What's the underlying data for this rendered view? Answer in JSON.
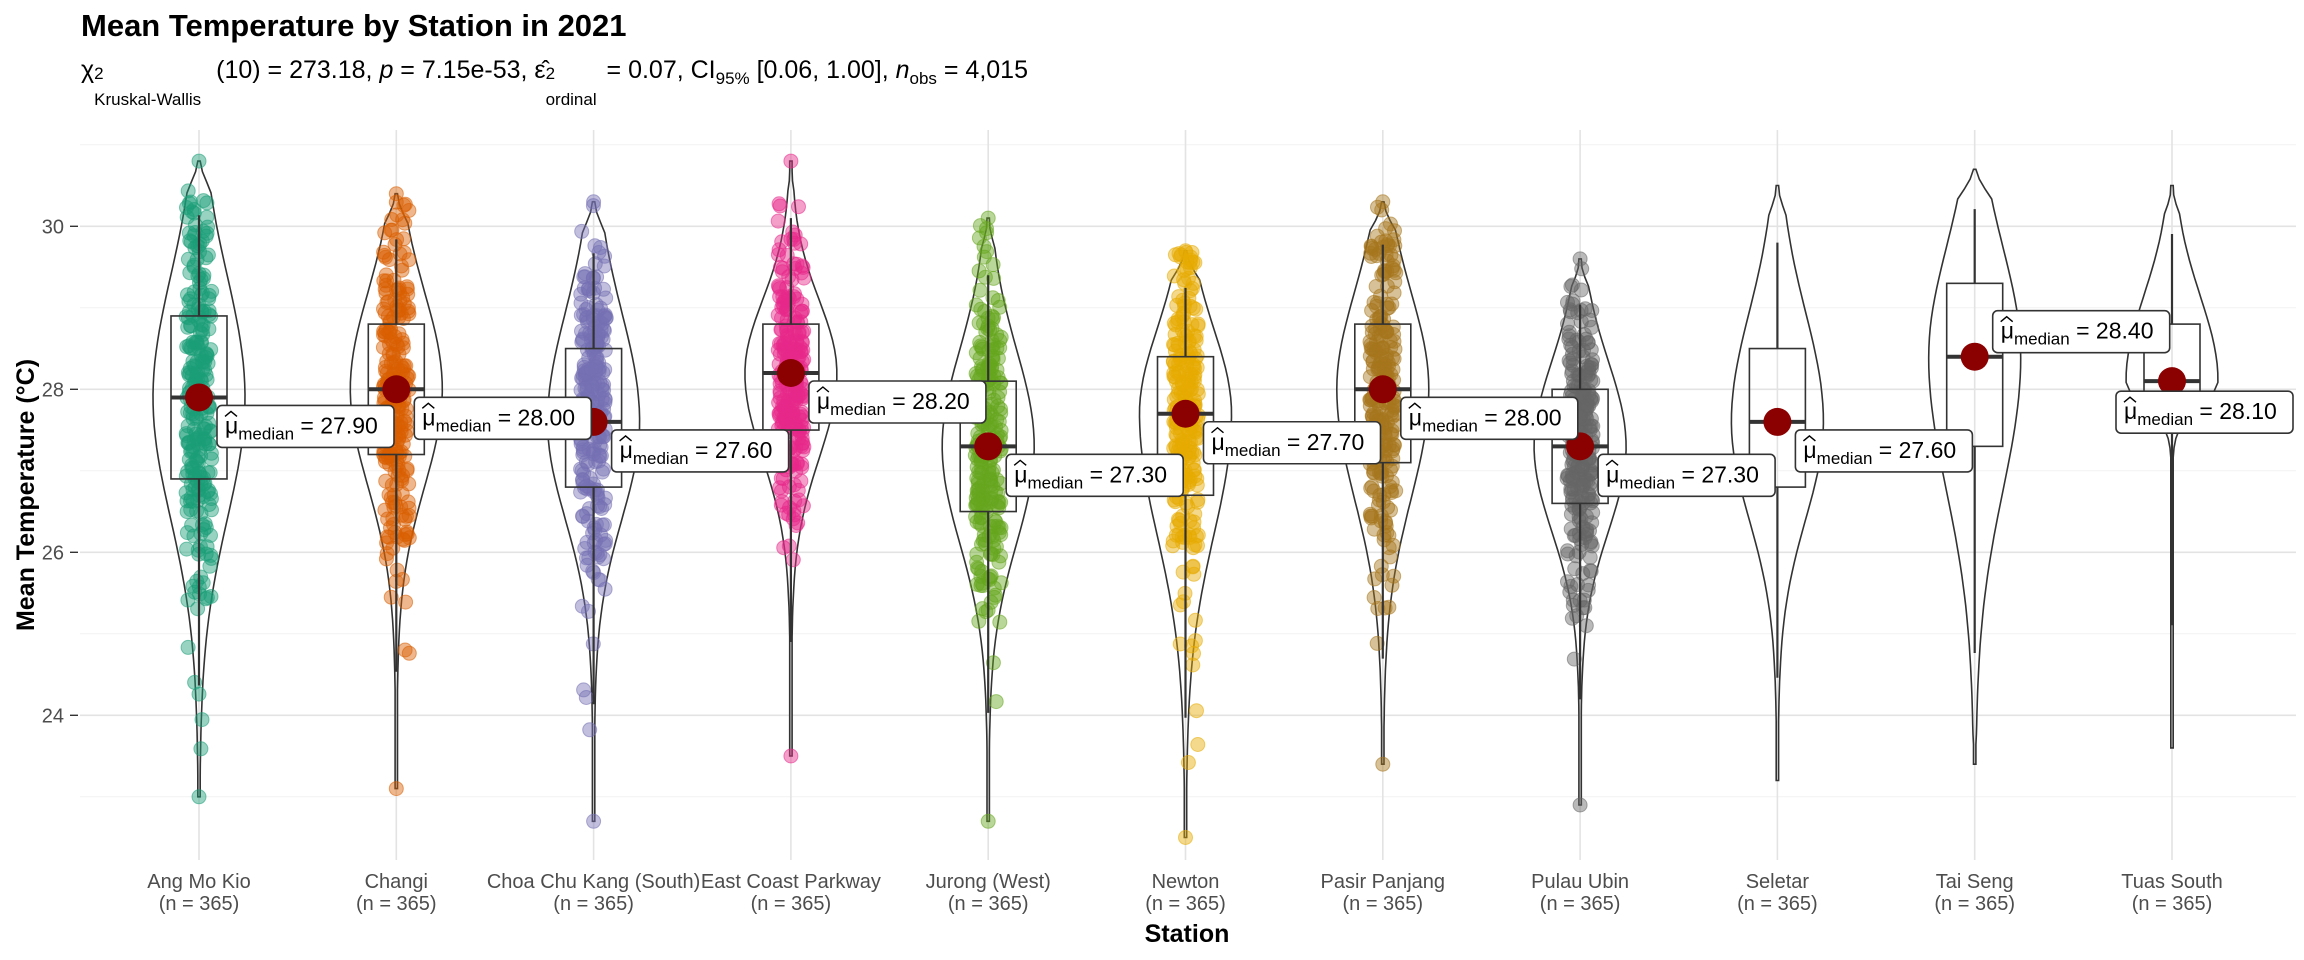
{
  "title": "Mean Temperature by Station in 2021",
  "subtitle": {
    "chi_sq": "χ",
    "chi_sup": "2",
    "chi_sub": "Kruskal-Wallis",
    "df_stat": "(10) = 273.18, ",
    "p_label": "p",
    "p_value": " = 7.15e-53, ",
    "eps": "ε̂",
    "eps_sup": "2",
    "eps_sub": "ordinal",
    "eps_value": " = 0.07, CI",
    "ci_sub": "95%",
    "ci_value": " [0.06, 1.00], ",
    "n_label": "n",
    "n_sub": "obs",
    "n_value": " = 4,015"
  },
  "chart_data": {
    "type": "violin",
    "title": "Mean Temperature by Station in 2021",
    "xlabel": "Station",
    "ylabel": "Mean Temperature (°C)",
    "ylim": [
      22.2,
      31.2
    ],
    "yticks": [
      24,
      26,
      28,
      30
    ],
    "grid": true,
    "label_mu": "μ",
    "label_sub": "median",
    "categories": [
      {
        "name": "Ang Mo Kio",
        "n": "(n = 365)",
        "color": "#1B9E77",
        "points": true,
        "median": 27.9,
        "median_label": "= 27.90",
        "q1": 26.9,
        "q3": 28.9,
        "min": 23.0,
        "max": 30.8
      },
      {
        "name": "Changi",
        "n": "(n = 365)",
        "color": "#D95F02",
        "points": true,
        "median": 28.0,
        "median_label": "= 28.00",
        "q1": 27.2,
        "q3": 28.8,
        "min": 23.1,
        "max": 30.4
      },
      {
        "name": "Choa Chu Kang (South)",
        "n": "(n = 365)",
        "color": "#7570B3",
        "points": true,
        "median": 27.6,
        "median_label": "= 27.60",
        "q1": 26.8,
        "q3": 28.5,
        "min": 22.7,
        "max": 30.3
      },
      {
        "name": "East Coast Parkway",
        "n": "(n = 365)",
        "color": "#E7298A",
        "points": true,
        "median": 28.2,
        "median_label": "= 28.20",
        "q1": 27.5,
        "q3": 28.8,
        "min": 23.5,
        "max": 30.8
      },
      {
        "name": "Jurong (West)",
        "n": "(n = 365)",
        "color": "#66A61E",
        "points": true,
        "median": 27.3,
        "median_label": "= 27.30",
        "q1": 26.5,
        "q3": 28.1,
        "min": 22.7,
        "max": 30.1
      },
      {
        "name": "Newton",
        "n": "(n = 365)",
        "color": "#E6AB02",
        "points": true,
        "median": 27.7,
        "median_label": "= 27.70",
        "q1": 26.7,
        "q3": 28.4,
        "min": 22.5,
        "max": 29.7
      },
      {
        "name": "Pasir Panjang",
        "n": "(n = 365)",
        "color": "#A6761D",
        "points": true,
        "median": 28.0,
        "median_label": "= 28.00",
        "q1": 27.1,
        "q3": 28.8,
        "min": 23.4,
        "max": 30.3
      },
      {
        "name": "Pulau Ubin",
        "n": "(n = 365)",
        "color": "#666666",
        "points": true,
        "median": 27.3,
        "median_label": "= 27.30",
        "q1": 26.6,
        "q3": 28.0,
        "min": 22.9,
        "max": 29.6
      },
      {
        "name": "Seletar",
        "n": "(n = 365)",
        "color": "#000000",
        "points": false,
        "median": 27.6,
        "median_label": "= 27.60",
        "q1": 26.8,
        "q3": 28.5,
        "min": 23.2,
        "max": 30.5
      },
      {
        "name": "Tai Seng",
        "n": "(n = 365)",
        "color": "#000000",
        "points": false,
        "median": 28.4,
        "median_label": "= 28.40",
        "q1": 27.3,
        "q3": 29.3,
        "min": 23.4,
        "max": 30.7
      },
      {
        "name": "Tuas South",
        "n": "(n = 365)",
        "color": "#000000",
        "points": false,
        "median": 28.1,
        "median_label": "= 28.10",
        "q1": 27.9,
        "q3": 28.8,
        "min": 23.6,
        "max": 30.5
      }
    ]
  }
}
